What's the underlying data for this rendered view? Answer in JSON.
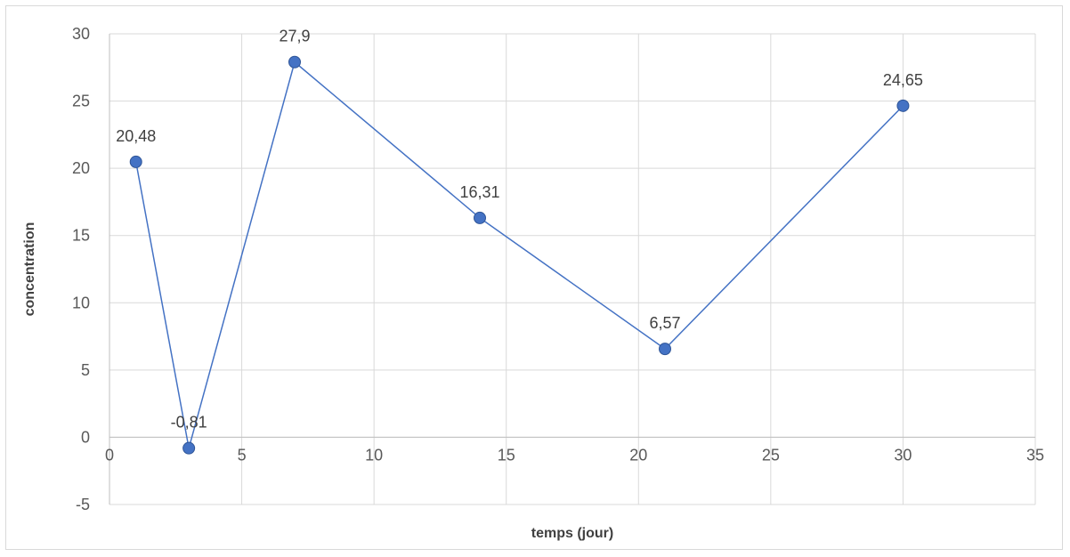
{
  "chart_data": {
    "type": "scatter",
    "title": "",
    "xlabel": "temps (jour)",
    "ylabel": "concentration",
    "xlim": [
      0,
      35
    ],
    "ylim": [
      -5,
      30
    ],
    "xticks": [
      0,
      5,
      10,
      15,
      20,
      25,
      30,
      35
    ],
    "yticks": [
      -5,
      0,
      5,
      10,
      15,
      20,
      25,
      30
    ],
    "grid": true,
    "lines": true,
    "series": [
      {
        "x": [
          1,
          3,
          7,
          14,
          21,
          30
        ],
        "y": [
          20.48,
          -0.81,
          27.9,
          16.31,
          6.57,
          24.65
        ],
        "labels": [
          "20,48",
          "-0,81",
          "27,9",
          "16,31",
          "6,57",
          "24,65"
        ]
      }
    ],
    "colors": {
      "series": "#4472c4",
      "grid": "#d9d9d9",
      "axis": "#bfbfbf"
    }
  }
}
